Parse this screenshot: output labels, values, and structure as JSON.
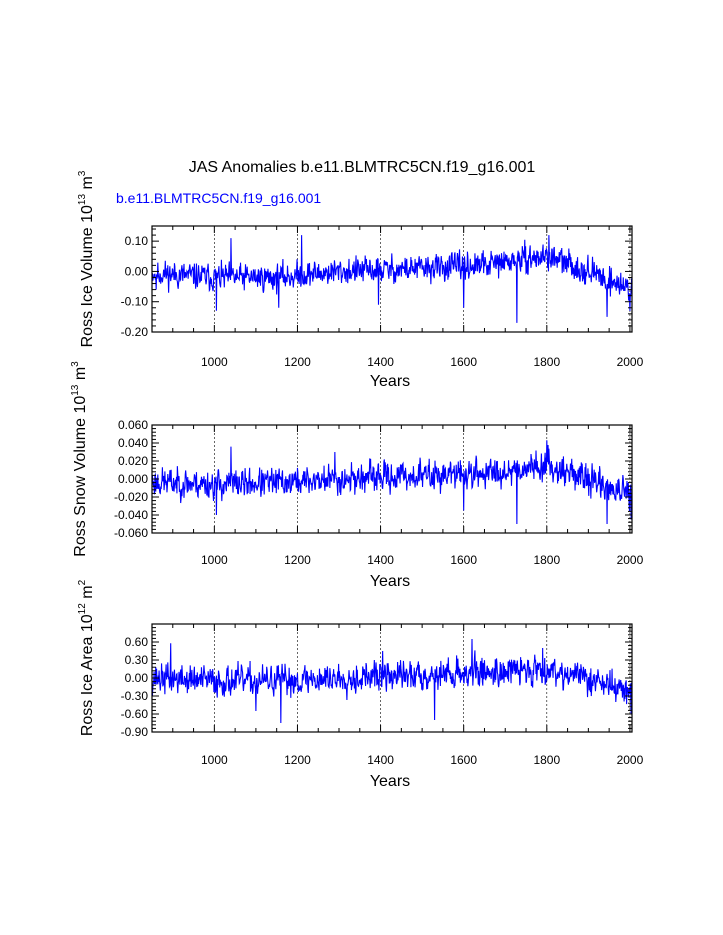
{
  "title": "JAS Anomalies b.e11.BLMTRC5CN.f19_g16.001",
  "colors": {
    "series": "#0000ff",
    "axis": "#000000",
    "grid": "#000000"
  },
  "chart_data": [
    {
      "type": "line",
      "id": "ice-volume",
      "legend": "b.e11.BLMTRC5CN.f19_g16.001",
      "ylabel": {
        "main": "Ross Ice Volume 10",
        "sup1": "13",
        "mid": " m",
        "sup2": "3"
      },
      "xlabel": "Years",
      "xlim": [
        850,
        2005
      ],
      "ylim": [
        -0.2,
        0.15
      ],
      "xticks": [
        1000,
        1200,
        1400,
        1600,
        1800,
        2000
      ],
      "xtick_labels": [
        "1000",
        "1200",
        "1400",
        "1600",
        "1800",
        "2000"
      ],
      "yticks": [
        0.1,
        0.0,
        -0.1,
        -0.2
      ],
      "ytick_labels": [
        "0.10",
        "0.00",
        "-0.10",
        "-0.20"
      ],
      "grid_x": [
        1000,
        1200,
        1400,
        1600,
        1800,
        2000
      ],
      "n": 1156,
      "seed": 11,
      "amp": 0.03,
      "trend": [
        [
          850,
          -0.005
        ],
        [
          1000,
          -0.02
        ],
        [
          1150,
          -0.02
        ],
        [
          1300,
          0.0
        ],
        [
          1500,
          0.01
        ],
        [
          1650,
          0.02
        ],
        [
          1800,
          0.05
        ],
        [
          1900,
          0.0
        ],
        [
          2005,
          -0.06
        ]
      ],
      "spikes": [
        [
          860,
          -0.06
        ],
        [
          1005,
          -0.13
        ],
        [
          1040,
          0.11
        ],
        [
          1155,
          -0.12
        ],
        [
          1210,
          0.12
        ],
        [
          1395,
          -0.11
        ],
        [
          1728,
          -0.17
        ],
        [
          1945,
          -0.15
        ],
        [
          2000,
          -0.13
        ],
        [
          1805,
          0.12
        ],
        [
          1600,
          -0.12
        ]
      ]
    },
    {
      "type": "line",
      "id": "snow-volume",
      "legend": "",
      "ylabel": {
        "main": "Ross Snow Volume 10",
        "sup1": "13",
        "mid": " m",
        "sup2": "3"
      },
      "xlabel": "Years",
      "xlim": [
        850,
        2005
      ],
      "ylim": [
        -0.06,
        0.06
      ],
      "xticks": [
        1000,
        1200,
        1400,
        1600,
        1800,
        2000
      ],
      "xtick_labels": [
        "1000",
        "1200",
        "1400",
        "1600",
        "1800",
        "2000"
      ],
      "yticks": [
        0.06,
        0.04,
        0.02,
        0.0,
        -0.02,
        -0.04,
        -0.06
      ],
      "ytick_labels": [
        "0.060",
        "0.040",
        "0.020",
        "0.000",
        "-0.020",
        "-0.040",
        "-0.060"
      ],
      "grid_x": [
        1000,
        1200,
        1400,
        1600,
        1800,
        2000
      ],
      "n": 1156,
      "seed": 23,
      "amp": 0.011,
      "trend": [
        [
          850,
          -0.003
        ],
        [
          1000,
          -0.006
        ],
        [
          1150,
          -0.004
        ],
        [
          1300,
          0.0
        ],
        [
          1500,
          0.004
        ],
        [
          1650,
          0.006
        ],
        [
          1800,
          0.016
        ],
        [
          1900,
          0.0
        ],
        [
          2005,
          -0.02
        ]
      ],
      "spikes": [
        [
          1005,
          -0.04
        ],
        [
          1040,
          0.036
        ],
        [
          1728,
          -0.05
        ],
        [
          1945,
          -0.05
        ],
        [
          2003,
          -0.045
        ],
        [
          1800,
          0.043
        ],
        [
          1600,
          -0.035
        ],
        [
          1290,
          0.03
        ]
      ]
    },
    {
      "type": "line",
      "id": "ice-area",
      "legend": "",
      "ylabel": {
        "main": "Ross Ice Area 10",
        "sup1": "12",
        "mid": " m",
        "sup2": "2"
      },
      "xlabel": "Years",
      "xlim": [
        850,
        2005
      ],
      "ylim": [
        -0.9,
        0.9
      ],
      "xticks": [
        1000,
        1200,
        1400,
        1600,
        1800,
        2000
      ],
      "xtick_labels": [
        "1000",
        "1200",
        "1400",
        "1600",
        "1800",
        "2000"
      ],
      "yticks": [
        0.6,
        0.3,
        0.0,
        -0.3,
        -0.6,
        -0.9
      ],
      "ytick_labels": [
        "0.60",
        "0.30",
        "0.00",
        "-0.30",
        "-0.60",
        "-0.90"
      ],
      "grid_x": [
        1000,
        1200,
        1400,
        1600,
        1800,
        2000
      ],
      "n": 1156,
      "seed": 37,
      "amp": 0.17,
      "trend": [
        [
          850,
          0.0
        ],
        [
          1000,
          -0.05
        ],
        [
          1150,
          -0.05
        ],
        [
          1300,
          0.0
        ],
        [
          1500,
          0.05
        ],
        [
          1650,
          0.1
        ],
        [
          1800,
          0.15
        ],
        [
          1900,
          0.0
        ],
        [
          2005,
          -0.25
        ]
      ],
      "spikes": [
        [
          895,
          0.58
        ],
        [
          1160,
          -0.75
        ],
        [
          1530,
          -0.7
        ],
        [
          1620,
          0.65
        ],
        [
          1790,
          0.5
        ],
        [
          2003,
          -0.6
        ],
        [
          1100,
          -0.55
        ],
        [
          1405,
          0.45
        ]
      ]
    }
  ]
}
